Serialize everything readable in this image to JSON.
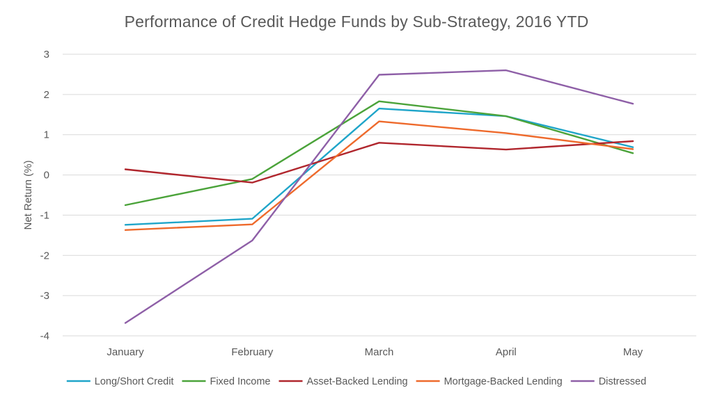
{
  "chart_data": {
    "type": "line",
    "title": "Performance of Credit Hedge Funds by Sub-Strategy, 2016 YTD",
    "xlabel": "",
    "ylabel": "Net Return (%)",
    "categories": [
      "January",
      "February",
      "March",
      "April",
      "May"
    ],
    "ylim": [
      -4,
      3
    ],
    "yticks": [
      3,
      2,
      1,
      0,
      -1,
      -2,
      -3,
      -4
    ],
    "grid": true,
    "legend_position": "bottom",
    "series": [
      {
        "name": "Long/Short Credit",
        "color": "#1fa5c9",
        "values": [
          -1.24,
          -1.09,
          1.65,
          1.46,
          0.69
        ]
      },
      {
        "name": "Fixed Income",
        "color": "#4ba33a",
        "values": [
          -0.75,
          -0.1,
          1.83,
          1.46,
          0.54
        ]
      },
      {
        "name": "Asset-Backed Lending",
        "color": "#b0262d",
        "values": [
          0.14,
          -0.19,
          0.8,
          0.63,
          0.84
        ]
      },
      {
        "name": "Mortgage-Backed Lending",
        "color": "#ee6a2c",
        "values": [
          -1.37,
          -1.23,
          1.33,
          1.04,
          0.64
        ]
      },
      {
        "name": "Distressed",
        "color": "#8e5fa7",
        "values": [
          -3.68,
          -1.63,
          2.49,
          2.6,
          1.77
        ]
      }
    ]
  }
}
